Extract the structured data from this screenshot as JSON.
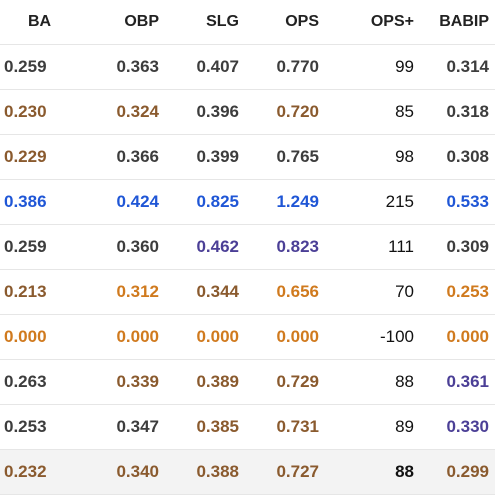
{
  "columns": [
    "BA",
    "OBP",
    "SLG",
    "OPS",
    "OPS+",
    "BABIP"
  ],
  "colors": {
    "gray": "#3d3d3d",
    "brown": "#8a5a2e",
    "orange": "#d07a1e",
    "blue": "#1f56d6",
    "purple": "#4b3f96",
    "black": "#111111"
  },
  "rows": [
    {
      "ba": "0.259",
      "obp": "0.363",
      "slg": "0.407",
      "ops": "0.770",
      "ops_plus": "99",
      "babip": "0.314",
      "colors": {
        "ba": "gray",
        "obp": "gray",
        "slg": "gray",
        "ops": "gray",
        "babip": "gray"
      }
    },
    {
      "ba": "0.230",
      "obp": "0.324",
      "slg": "0.396",
      "ops": "0.720",
      "ops_plus": "85",
      "babip": "0.318",
      "colors": {
        "ba": "brown",
        "obp": "brown",
        "slg": "gray",
        "ops": "brown",
        "babip": "gray"
      }
    },
    {
      "ba": "0.229",
      "obp": "0.366",
      "slg": "0.399",
      "ops": "0.765",
      "ops_plus": "98",
      "babip": "0.308",
      "colors": {
        "ba": "brown",
        "obp": "gray",
        "slg": "gray",
        "ops": "gray",
        "babip": "gray"
      }
    },
    {
      "ba": "0.386",
      "obp": "0.424",
      "slg": "0.825",
      "ops": "1.249",
      "ops_plus": "215",
      "babip": "0.533",
      "colors": {
        "ba": "blue",
        "obp": "blue",
        "slg": "blue",
        "ops": "blue",
        "babip": "blue"
      }
    },
    {
      "ba": "0.259",
      "obp": "0.360",
      "slg": "0.462",
      "ops": "0.823",
      "ops_plus": "111",
      "babip": "0.309",
      "colors": {
        "ba": "gray",
        "obp": "gray",
        "slg": "purple",
        "ops": "purple",
        "babip": "gray"
      }
    },
    {
      "ba": "0.213",
      "obp": "0.312",
      "slg": "0.344",
      "ops": "0.656",
      "ops_plus": "70",
      "babip": "0.253",
      "colors": {
        "ba": "brown",
        "obp": "orange",
        "slg": "brown",
        "ops": "orange",
        "babip": "orange"
      }
    },
    {
      "ba": "0.000",
      "obp": "0.000",
      "slg": "0.000",
      "ops": "0.000",
      "ops_plus": "-100",
      "babip": "0.000",
      "colors": {
        "ba": "orange",
        "obp": "orange",
        "slg": "orange",
        "ops": "orange",
        "babip": "orange"
      }
    },
    {
      "ba": "0.263",
      "obp": "0.339",
      "slg": "0.389",
      "ops": "0.729",
      "ops_plus": "88",
      "babip": "0.361",
      "colors": {
        "ba": "gray",
        "obp": "brown",
        "slg": "brown",
        "ops": "brown",
        "babip": "purple"
      }
    },
    {
      "ba": "0.253",
      "obp": "0.347",
      "slg": "0.385",
      "ops": "0.731",
      "ops_plus": "89",
      "babip": "0.330",
      "colors": {
        "ba": "gray",
        "obp": "gray",
        "slg": "brown",
        "ops": "brown",
        "babip": "purple"
      }
    }
  ],
  "totals": {
    "ba": "0.232",
    "obp": "0.340",
    "slg": "0.388",
    "ops": "0.727",
    "ops_plus": "88",
    "babip": "0.299",
    "colors": {
      "ba": "brown",
      "obp": "brown",
      "slg": "brown",
      "ops": "brown",
      "babip": "brown"
    }
  }
}
